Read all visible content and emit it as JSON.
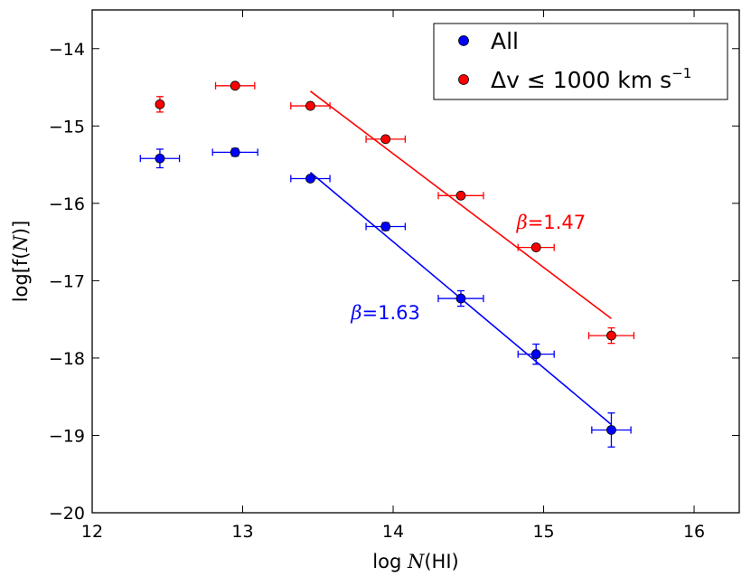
{
  "chart_data": {
    "type": "scatter",
    "title": "",
    "xlabel": {
      "prefix": "log ",
      "var": "N",
      "suffix": "(HI)"
    },
    "ylabel": {
      "prefix": "log[f(",
      "var": "N",
      "suffix": ")]"
    },
    "xlim": [
      12,
      16.3
    ],
    "ylim": [
      -20,
      -13.5
    ],
    "xticks": [
      12,
      13,
      14,
      15,
      16
    ],
    "yticks": [
      -20,
      -19,
      -18,
      -17,
      -16,
      -15,
      -14
    ],
    "xtick_labels": [
      "12",
      "13",
      "14",
      "15",
      "16"
    ],
    "ytick_labels": [
      "−20",
      "−19",
      "−18",
      "−17",
      "−16",
      "−15",
      "−14"
    ],
    "grid": false,
    "legend_position": "top-right",
    "series": [
      {
        "name": "All",
        "color": "#0000ff",
        "x": [
          12.45,
          12.95,
          13.45,
          13.95,
          14.45,
          14.95,
          15.45
        ],
        "y": [
          -15.42,
          -15.34,
          -15.68,
          -16.3,
          -17.23,
          -17.95,
          -18.93
        ],
        "xerr": [
          0.13,
          0.15,
          0.13,
          0.13,
          0.15,
          0.12,
          0.13
        ],
        "yerr": [
          0.12,
          0.05,
          0.03,
          0.05,
          0.1,
          0.13,
          0.22
        ]
      },
      {
        "name": "Δv ≤ 1000 km s⁻¹",
        "color": "#ff0000",
        "x": [
          12.45,
          12.95,
          13.45,
          13.95,
          14.45,
          14.95,
          15.45
        ],
        "y": [
          -14.72,
          -14.48,
          -14.74,
          -15.17,
          -15.9,
          -16.57,
          -17.71
        ],
        "xerr": [
          0.0,
          0.13,
          0.13,
          0.13,
          0.15,
          0.12,
          0.15
        ],
        "yerr": [
          0.1,
          0.03,
          0.03,
          0.03,
          0.03,
          0.03,
          0.1
        ]
      }
    ],
    "fits": [
      {
        "series": "All",
        "color": "#0000ff",
        "x": [
          13.45,
          15.45
        ],
        "y": [
          -15.6,
          -18.86
        ],
        "beta_symbol": "β",
        "beta_text": "=1.63",
        "label_x": 13.72,
        "label_y": -17.5
      },
      {
        "series": "Δv ≤ 1000 km s⁻¹",
        "color": "#ff0000",
        "x": [
          13.45,
          15.45
        ],
        "y": [
          -14.55,
          -17.49
        ],
        "beta_symbol": "β",
        "beta_text": "=1.47",
        "label_x": 14.82,
        "label_y": -16.33
      }
    ],
    "legend": {
      "entries": [
        {
          "label": "All",
          "color": "#0000ff"
        },
        {
          "label_main": "Δv ≤ 1000 km s",
          "label_sup": "−1",
          "color": "#ff0000"
        }
      ]
    }
  }
}
